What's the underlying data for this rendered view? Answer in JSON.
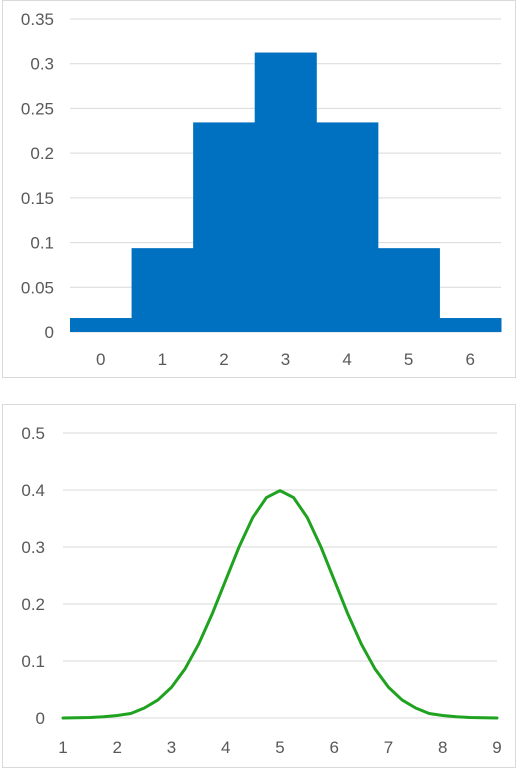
{
  "colors": {
    "bar": "#0070c0",
    "line": "#1fa21f",
    "grid": "#d9d9d9",
    "text": "#595959"
  },
  "chart_data": [
    {
      "type": "bar",
      "title": "",
      "xlabel": "",
      "ylabel": "",
      "categories": [
        "0",
        "1",
        "2",
        "3",
        "4",
        "5",
        "6"
      ],
      "values": [
        0.015625,
        0.09375,
        0.234375,
        0.3125,
        0.234375,
        0.09375,
        0.015625
      ],
      "ylim": [
        0,
        0.35
      ],
      "yticks": [
        "0",
        "0.05",
        "0.1",
        "0.15",
        "0.2",
        "0.25",
        "0.3",
        "0.35"
      ],
      "grid": true,
      "legend": "none"
    },
    {
      "type": "line",
      "title": "",
      "xlabel": "",
      "ylabel": "",
      "x": [
        1,
        1.25,
        1.5,
        1.75,
        2,
        2.25,
        2.5,
        2.75,
        3,
        3.25,
        3.5,
        3.75,
        4,
        4.25,
        4.5,
        4.75,
        5,
        5.25,
        5.5,
        5.75,
        6,
        6.25,
        6.5,
        6.75,
        7,
        7.25,
        7.5,
        7.75,
        8,
        8.25,
        8.5,
        8.75,
        9
      ],
      "y": [
        0.0001,
        0.0004,
        0.0009,
        0.0022,
        0.0044,
        0.0079,
        0.0175,
        0.0317,
        0.054,
        0.0863,
        0.1295,
        0.1826,
        0.242,
        0.3011,
        0.3521,
        0.3867,
        0.3989,
        0.3867,
        0.3521,
        0.3011,
        0.242,
        0.1826,
        0.1295,
        0.0863,
        0.054,
        0.0317,
        0.0175,
        0.0079,
        0.0044,
        0.0022,
        0.0009,
        0.0004,
        0.0001
      ],
      "xlim": [
        1,
        9
      ],
      "ylim": [
        0,
        0.5
      ],
      "xticks": [
        "1",
        "2",
        "3",
        "4",
        "5",
        "6",
        "7",
        "8",
        "9"
      ],
      "yticks": [
        "0",
        "0.1",
        "0.2",
        "0.3",
        "0.4",
        "0.5"
      ],
      "grid": true,
      "legend": "none"
    }
  ]
}
